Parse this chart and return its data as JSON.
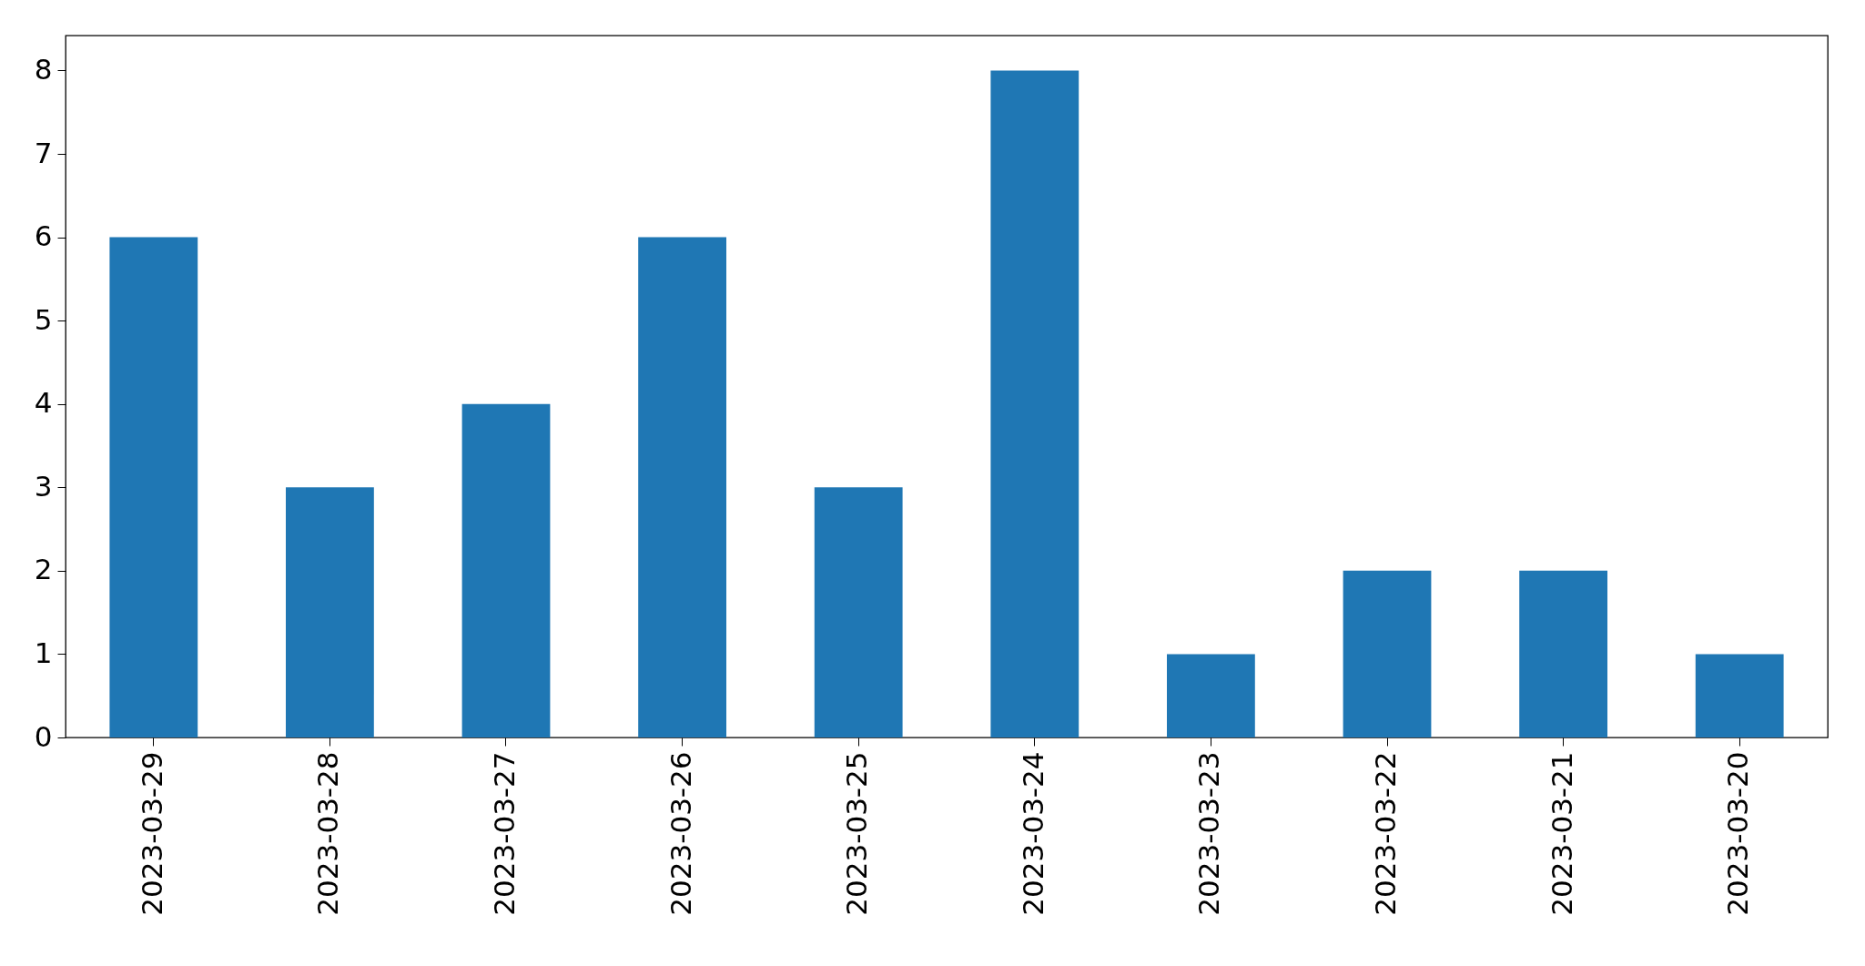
{
  "chart_data": {
    "type": "bar",
    "categories": [
      "2023-03-29",
      "2023-03-28",
      "2023-03-27",
      "2023-03-26",
      "2023-03-25",
      "2023-03-24",
      "2023-03-23",
      "2023-03-22",
      "2023-03-21",
      "2023-03-20"
    ],
    "values": [
      6,
      3,
      4,
      6,
      3,
      8,
      1,
      2,
      2,
      1
    ],
    "color": "#1f77b4",
    "ylim": [
      0,
      8.42
    ],
    "yticks": [
      0,
      1,
      2,
      3,
      4,
      5,
      6,
      7,
      8
    ],
    "grid": false
  }
}
